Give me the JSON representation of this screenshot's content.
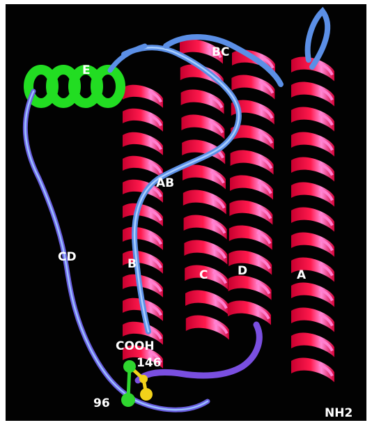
{
  "labels": {
    "E": "E",
    "BC": "BC",
    "AB": "AB",
    "CD": "CD",
    "B": "B",
    "C": "C",
    "D": "D",
    "A": "A",
    "COOH": "COOH",
    "res146": "146",
    "res96": "96",
    "NH2": "NH2"
  },
  "colors": {
    "background": "#020202",
    "helix": "#ff1a4d",
    "helix_highlight": "#ff7fd0",
    "loop": "#5b8fe6",
    "loop_dark": "#6a3fcf",
    "helix_E": "#22dd22",
    "atom_green": "#2fd62f",
    "atom_yellow": "#f2d21a",
    "label": "#ffffff"
  }
}
